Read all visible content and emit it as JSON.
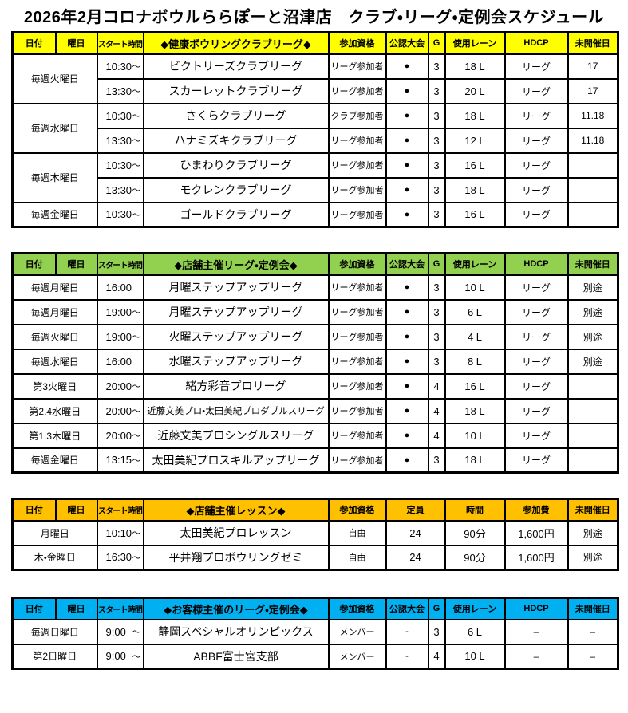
{
  "page_title": "2026年2月コロナボウルららぽーと沼津店　クラブ・リーグ・定例会スケジュール",
  "tables": [
    {
      "accent": "#FFFF00",
      "headers": {
        "date": "日付",
        "day": "曜日",
        "start": "スタート時間",
        "name": "◆健康ボウリングクラブリーグ◆",
        "qual": "参加資格",
        "official": "公認大会",
        "g": "G",
        "lanes": "使用レーン",
        "hdcp": "HDCP",
        "closed": "未開催日"
      },
      "rows": [
        {
          "date": "毎週火曜日",
          "date_rowspan": 2,
          "start": "10:30",
          "tilde": "～",
          "name": "ビクトリーズクラブリーグ",
          "qual": "リーグ参加者",
          "official": "●",
          "g": "3",
          "lanes": "18 L",
          "hdcp": "リーグ",
          "closed": "17"
        },
        {
          "start": "13:30",
          "tilde": "～",
          "name": "スカーレットクラブリーグ",
          "qual": "リーグ参加者",
          "official": "●",
          "g": "3",
          "lanes": "20 L",
          "hdcp": "リーグ",
          "closed": "17"
        },
        {
          "date": "毎週水曜日",
          "date_rowspan": 2,
          "start": "10:30",
          "tilde": "～",
          "name": "さくらクラブリーグ",
          "qual": "クラブ参加者",
          "official": "●",
          "g": "3",
          "lanes": "18 L",
          "hdcp": "リーグ",
          "closed": "11.18"
        },
        {
          "start": "13:30",
          "tilde": "～",
          "name": "ハナミズキクラブリーグ",
          "qual": "リーグ参加者",
          "official": "●",
          "g": "3",
          "lanes": "12 L",
          "hdcp": "リーグ",
          "closed": "11.18"
        },
        {
          "date": "毎週木曜日",
          "date_rowspan": 2,
          "start": "10:30",
          "tilde": "～",
          "name": "ひまわりクラブリーグ",
          "qual": "リーグ参加者",
          "official": "●",
          "g": "3",
          "lanes": "16 L",
          "hdcp": "リーグ",
          "closed": ""
        },
        {
          "start": "13:30",
          "tilde": "～",
          "name": "モクレンクラブリーグ",
          "qual": "リーグ参加者",
          "official": "●",
          "g": "3",
          "lanes": "18 L",
          "hdcp": "リーグ",
          "closed": ""
        },
        {
          "date": "毎週金曜日",
          "start": "10:30",
          "tilde": "～",
          "name": "ゴールドクラブリーグ",
          "qual": "リーグ参加者",
          "official": "●",
          "g": "3",
          "lanes": "16 L",
          "hdcp": "リーグ",
          "closed": ""
        }
      ]
    },
    {
      "accent": "#92D050",
      "headers": {
        "date": "日付",
        "day": "曜日",
        "start": "スタート時間",
        "name": "◆店舗主催リーグ・定例会◆",
        "qual": "参加資格",
        "official": "公認大会",
        "g": "G",
        "lanes": "使用レーン",
        "hdcp": "HDCP",
        "closed": "未開催日"
      },
      "rows": [
        {
          "date": "毎週月曜日",
          "start": "16:00",
          "tilde": "",
          "name": "月曜ステップアップリーグ",
          "qual": "リーグ参加者",
          "official": "●",
          "g": "3",
          "lanes": "10 L",
          "hdcp": "リーグ",
          "closed": "別途"
        },
        {
          "date": "毎週月曜日",
          "start": "19:00",
          "tilde": "～",
          "name": "月曜ステップアップリーグ",
          "qual": "リーグ参加者",
          "official": "●",
          "g": "3",
          "lanes": "6 L",
          "hdcp": "リーグ",
          "closed": "別途"
        },
        {
          "date": "毎週火曜日",
          "start": "19:00",
          "tilde": "～",
          "name": "火曜ステップアップリーグ",
          "qual": "リーグ参加者",
          "official": "●",
          "g": "3",
          "lanes": "4 L",
          "hdcp": "リーグ",
          "closed": "別途"
        },
        {
          "date": "毎週水曜日",
          "start": "16:00",
          "tilde": "",
          "name": "水曜ステップアップリーグ",
          "qual": "リーグ参加者",
          "official": "●",
          "g": "3",
          "lanes": "8 L",
          "hdcp": "リーグ",
          "closed": "別途"
        },
        {
          "date": "第3火曜日",
          "start": "20:00",
          "tilde": "～",
          "name": "緒方彩音プロリーグ",
          "qual": "リーグ参加者",
          "official": "●",
          "g": "4",
          "lanes": "16 L",
          "hdcp": "リーグ",
          "closed": ""
        },
        {
          "date": "第2.4水曜日",
          "start": "20:00",
          "tilde": "～",
          "name": "近藤文美プロ・太田美紀プロダブルスリーグ",
          "qual": "リーグ参加者",
          "official": "●",
          "g": "4",
          "lanes": "18 L",
          "hdcp": "リーグ",
          "closed": ""
        },
        {
          "date": "第1.3木曜日",
          "start": "20:00",
          "tilde": "～",
          "name": "近藤文美プロシングルスリーグ",
          "qual": "リーグ参加者",
          "official": "●",
          "g": "4",
          "lanes": "10 L",
          "hdcp": "リーグ",
          "closed": ""
        },
        {
          "date": "毎週金曜日",
          "start": "13:15",
          "tilde": "～",
          "name": "太田美紀プロスキルアップリーグ",
          "qual": "リーグ参加者",
          "official": "●",
          "g": "3",
          "lanes": "18 L",
          "hdcp": "リーグ",
          "closed": ""
        }
      ]
    },
    {
      "accent": "#FFC000",
      "headers": {
        "date": "日付",
        "day": "曜日",
        "start": "スタート時間",
        "name": "◆店舗主催レッスン◆",
        "qual": "参加資格",
        "capacity": "定員",
        "duration": "時間",
        "fee": "参加費",
        "closed": "未開催日"
      },
      "rows": [
        {
          "date": "月曜日",
          "start": "10:10",
          "tilde": "～",
          "name": "太田美紀プロレッスン",
          "qual": "自由",
          "capacity": "24",
          "duration": "90分",
          "fee": "1,600円",
          "closed": "別途"
        },
        {
          "date": "木・金曜日",
          "start": "16:30",
          "tilde": "～",
          "name": "平井翔プロボウリングゼミ",
          "qual": "自由",
          "capacity": "24",
          "duration": "90分",
          "fee": "1,600円",
          "closed": "別途"
        }
      ]
    },
    {
      "accent": "#00B0F0",
      "headers": {
        "date": "日付",
        "day": "曜日",
        "start": "スタート時間",
        "name": "◆お客様主催のリーグ・定例会◆",
        "qual": "参加資格",
        "official": "公認大会",
        "g": "G",
        "lanes": "使用レーン",
        "hdcp": "HDCP",
        "closed": "未開催日"
      },
      "rows": [
        {
          "date": "毎週日曜日",
          "start": "9:00",
          "tilde": "～",
          "name": "静岡スペシャルオリンピックス",
          "qual": "メンバー",
          "official": "-",
          "g": "3",
          "lanes": "6 L",
          "hdcp": "–",
          "closed": "–"
        },
        {
          "date": "第2日曜日",
          "start": "9:00",
          "tilde": "～",
          "name": "ABBF富士宮支部",
          "qual": "メンバー",
          "official": "-",
          "g": "4",
          "lanes": "10 L",
          "hdcp": "–",
          "closed": "–"
        }
      ]
    }
  ]
}
